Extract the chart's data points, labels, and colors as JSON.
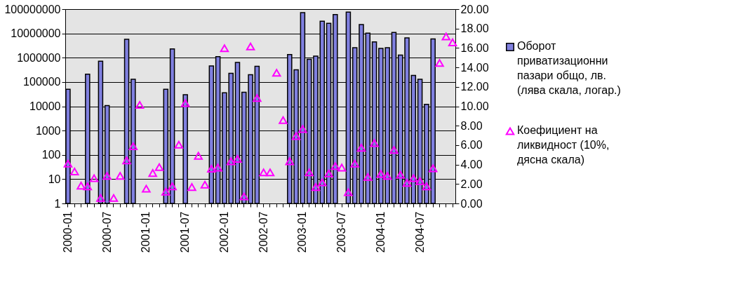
{
  "chart_data": {
    "type": "bar",
    "categories": [
      "2000-01",
      null,
      null,
      null,
      null,
      null,
      "2000-07",
      null,
      null,
      null,
      null,
      null,
      "2001-01",
      null,
      null,
      null,
      null,
      null,
      "2001-07",
      null,
      null,
      null,
      null,
      null,
      "2002-01",
      null,
      null,
      null,
      null,
      null,
      "2002-07",
      null,
      null,
      null,
      null,
      null,
      "2003-01",
      null,
      null,
      null,
      null,
      null,
      "2003-07",
      null,
      null,
      null,
      null,
      null,
      "2004-01",
      null,
      null,
      null,
      null,
      null,
      "2004-07",
      null,
      null,
      null,
      null,
      null
    ],
    "series": [
      {
        "name": "Оборот приватизационни пазари общо, лв. (лява скала, логар.)",
        "color": "#8080e0",
        "values": [
          50000,
          null,
          null,
          210000,
          null,
          720000,
          10700,
          null,
          null,
          5700000,
          130000,
          null,
          null,
          null,
          null,
          50000,
          2300000,
          null,
          30000,
          null,
          null,
          null,
          460000,
          1100000,
          36000,
          227000,
          640000,
          38000,
          200000,
          440000,
          null,
          null,
          null,
          null,
          1350000,
          316000,
          72000000,
          860000,
          1170000,
          32000000,
          26000000,
          60000000,
          null,
          76000000,
          2560000,
          23000000,
          10300000,
          4500000,
          2400000,
          2600000,
          11000000,
          1280000,
          6500000,
          186000,
          130000,
          12000,
          5900000,
          null,
          null,
          null
        ]
      },
      {
        "name": "Коефициент на ликвидност (10%, дясна скала)",
        "type": "scatter",
        "axis": "y2",
        "marker": "triangle",
        "color": "#ff00ff",
        "values": [
          4.1,
          3.28,
          1.83,
          1.76,
          2.6,
          0.56,
          2.84,
          0.56,
          2.84,
          4.43,
          5.88,
          10.14,
          1.52,
          3.13,
          3.74,
          1.21,
          1.76,
          6.05,
          10.32,
          1.69,
          4.9,
          1.93,
          3.57,
          3.69,
          15.98,
          4.34,
          4.58,
          0.72,
          16.15,
          10.85,
          3.2,
          3.2,
          13.45,
          8.58,
          4.34,
          6.94,
          7.66,
          3.2,
          1.69,
          2.17,
          3.09,
          3.85,
          3.69,
          1.16,
          4.1,
          5.73,
          2.73,
          6.22,
          3.04,
          2.84,
          5.5,
          2.96,
          2.12,
          2.6,
          2.29,
          1.76,
          3.62,
          14.46,
          17.19,
          16.58
        ]
      }
    ],
    "log": "y",
    "ylim": [
      1,
      100000000
    ],
    "yticks": [
      1,
      10,
      100,
      1000,
      10000,
      100000,
      1000000,
      10000000,
      100000000
    ],
    "y2lim": [
      0,
      20
    ],
    "y2ticks": [
      {
        "value": 0,
        "label": "0.00"
      },
      {
        "value": 2,
        "label": "2.00"
      },
      {
        "value": 4,
        "label": "4.00"
      },
      {
        "value": 6,
        "label": "6.00"
      },
      {
        "value": 8,
        "label": "8.00"
      },
      {
        "value": 10,
        "label": "10.00"
      },
      {
        "value": 12,
        "label": "12.00"
      },
      {
        "value": 14,
        "label": "14.00"
      },
      {
        "value": 16,
        "label": "16.00"
      },
      {
        "value": 18,
        "label": "18.00"
      },
      {
        "value": 20,
        "label": "20.00"
      }
    ],
    "grid": "y",
    "legend": "right"
  }
}
